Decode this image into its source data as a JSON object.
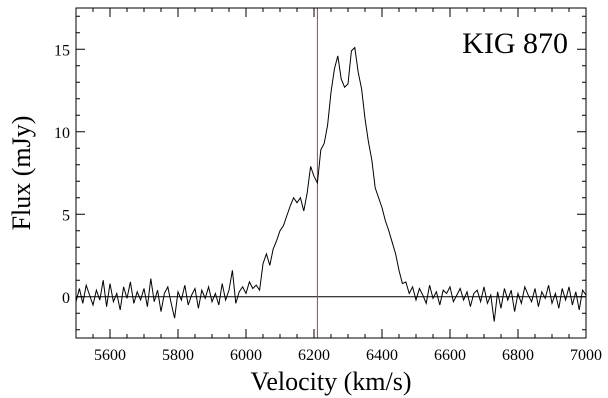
{
  "chart_data": {
    "type": "line",
    "title": "",
    "annotation": "KIG 870",
    "xlabel": "Velocity (km/s)",
    "ylabel": "Flux (mJy)",
    "xlim": [
      5500,
      7000
    ],
    "ylim": [
      -2.5,
      17.5
    ],
    "x_ticks": [
      5600,
      5800,
      6000,
      6200,
      6400,
      6600,
      6800,
      7000
    ],
    "y_ticks": [
      0,
      5,
      10,
      15
    ],
    "x_minor_step": 50,
    "y_minor_step": 1,
    "grid": false,
    "reference_lines": [
      {
        "orientation": "horizontal",
        "value": 0,
        "color": "#000000"
      },
      {
        "orientation": "vertical",
        "value": 6210,
        "color": "#c0392b"
      }
    ],
    "series": [
      {
        "color": "#000000",
        "x": [
          5500,
          5510,
          5520,
          5530,
          5540,
          5550,
          5560,
          5570,
          5580,
          5590,
          5600,
          5610,
          5620,
          5630,
          5640,
          5650,
          5660,
          5670,
          5680,
          5690,
          5700,
          5710,
          5720,
          5730,
          5740,
          5750,
          5760,
          5770,
          5780,
          5790,
          5800,
          5810,
          5820,
          5830,
          5840,
          5850,
          5860,
          5870,
          5880,
          5890,
          5900,
          5910,
          5920,
          5930,
          5940,
          5950,
          5960,
          5970,
          5980,
          5990,
          6000,
          6010,
          6020,
          6030,
          6040,
          6050,
          6060,
          6070,
          6080,
          6090,
          6100,
          6110,
          6120,
          6130,
          6140,
          6150,
          6160,
          6170,
          6180,
          6190,
          6200,
          6210,
          6220,
          6230,
          6240,
          6250,
          6260,
          6270,
          6280,
          6290,
          6300,
          6310,
          6320,
          6330,
          6340,
          6350,
          6360,
          6370,
          6380,
          6390,
          6400,
          6410,
          6420,
          6430,
          6440,
          6450,
          6460,
          6470,
          6480,
          6490,
          6500,
          6510,
          6520,
          6530,
          6540,
          6550,
          6560,
          6570,
          6580,
          6590,
          6600,
          6610,
          6620,
          6630,
          6640,
          6650,
          6660,
          6670,
          6680,
          6690,
          6700,
          6710,
          6720,
          6730,
          6740,
          6750,
          6760,
          6770,
          6780,
          6790,
          6800,
          6810,
          6820,
          6830,
          6840,
          6850,
          6860,
          6870,
          6880,
          6890,
          6900,
          6910,
          6920,
          6930,
          6940,
          6950,
          6960,
          6970,
          6980,
          6990,
          7000
        ],
        "y": [
          -0.3,
          0.5,
          -0.4,
          0.7,
          0.1,
          -0.5,
          0.4,
          -0.2,
          1.0,
          -0.6,
          0.8,
          -0.3,
          0.2,
          -0.8,
          0.6,
          -0.1,
          0.9,
          -0.4,
          0.3,
          -0.2,
          0.5,
          -0.6,
          1.1,
          -0.3,
          0.4,
          -0.9,
          0.2,
          0.6,
          -0.4,
          -1.3,
          0.3,
          -0.2,
          0.7,
          -0.5,
          0.1,
          0.5,
          -0.7,
          0.4,
          -0.1,
          0.6,
          -0.3,
          0.2,
          -0.5,
          0.8,
          -0.2,
          0.4,
          1.6,
          -0.4,
          0.3,
          0.6,
          0.2,
          0.9,
          0.5,
          0.7,
          0.4,
          2.0,
          2.6,
          1.9,
          2.9,
          3.4,
          4.0,
          4.3,
          4.9,
          5.5,
          6.0,
          5.7,
          6.0,
          5.2,
          6.3,
          7.9,
          7.3,
          6.9,
          8.9,
          9.3,
          10.4,
          12.4,
          13.8,
          14.6,
          13.2,
          12.7,
          12.9,
          14.9,
          15.1,
          13.6,
          12.6,
          10.8,
          9.4,
          8.3,
          6.6,
          6.0,
          5.4,
          4.6,
          4.0,
          3.3,
          2.6,
          1.6,
          0.8,
          0.9,
          0.2,
          0.6,
          -0.2,
          0.5,
          0.1,
          -0.4,
          0.7,
          -0.1,
          0.3,
          -0.5,
          0.4,
          0.2,
          0.6,
          -0.3,
          0.1,
          0.5,
          -0.2,
          0.3,
          -0.6,
          0.2,
          0.4,
          -0.3,
          0.6,
          -0.4,
          0.1,
          -1.5,
          0.3,
          -0.7,
          0.5,
          -0.2,
          0.4,
          -0.9,
          0.2,
          -0.4,
          0.6,
          0.1,
          -0.3,
          0.5,
          -0.6,
          0.3,
          -0.1,
          0.7,
          -0.4,
          0.2,
          -0.7,
          0.5,
          -0.2,
          0.6,
          -0.5,
          0.3,
          -0.8,
          0.4,
          0.1
        ]
      }
    ]
  }
}
